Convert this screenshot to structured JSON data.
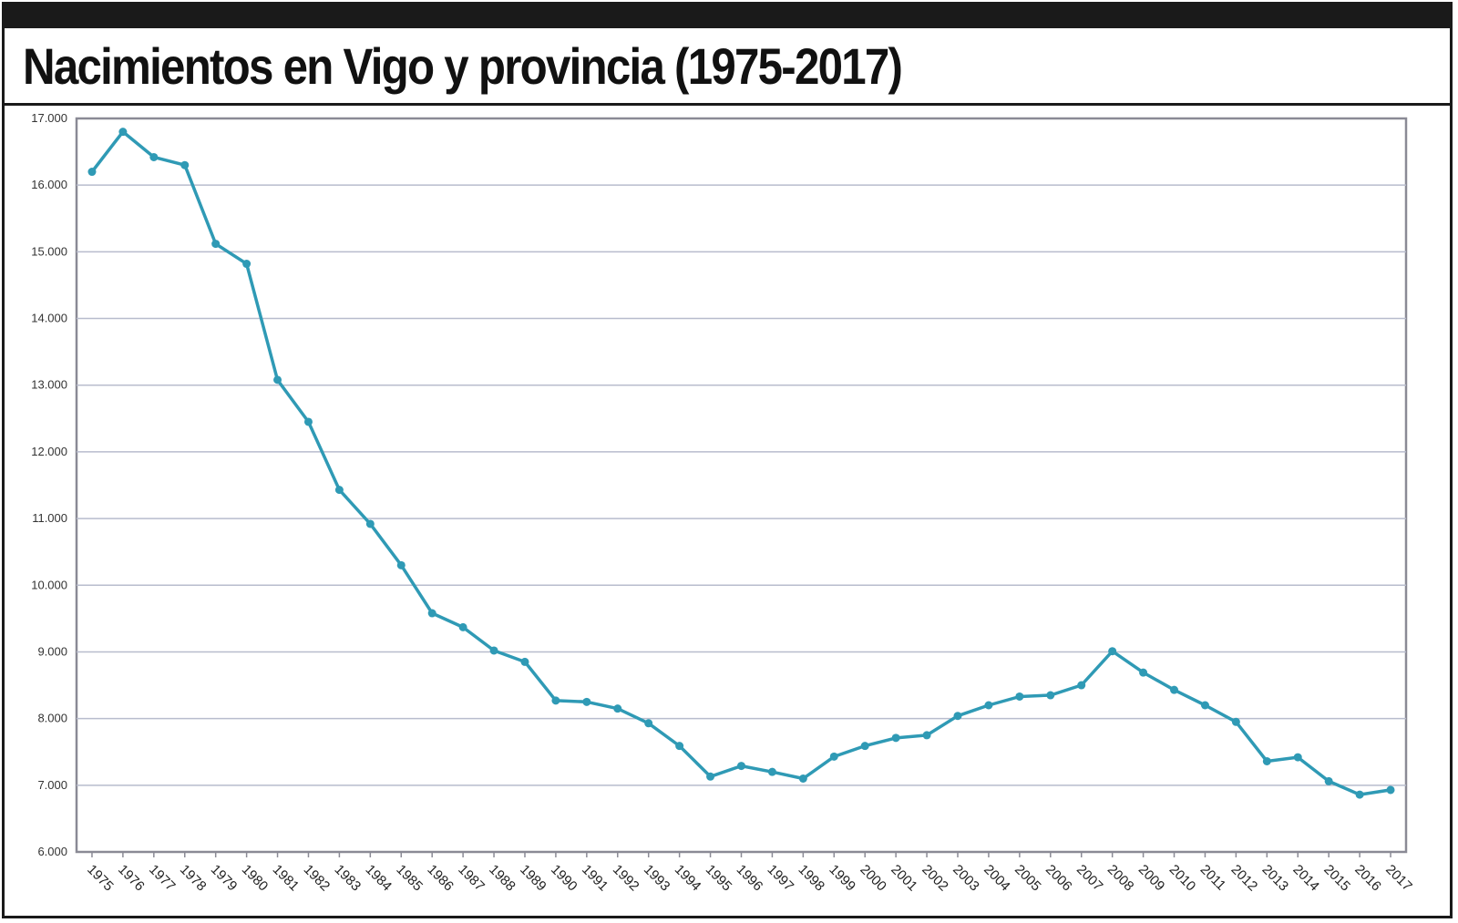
{
  "chart_data": {
    "type": "line",
    "title": "Nacimientos en Vigo y provincia (1975-2017)",
    "xlabel": "",
    "ylabel": "",
    "ylim": [
      6000,
      17000
    ],
    "y_ticks": [
      "6.000",
      "7.000",
      "8.000",
      "9.000",
      "10.000",
      "11.000",
      "12.000",
      "13.000",
      "14.000",
      "15.000",
      "16.000",
      "17.000"
    ],
    "y_tick_values": [
      6000,
      7000,
      8000,
      9000,
      10000,
      11000,
      12000,
      13000,
      14000,
      15000,
      16000,
      17000
    ],
    "x": [
      "1975",
      "1976",
      "1977",
      "1978",
      "1979",
      "1980",
      "1981",
      "1982",
      "1983",
      "1984",
      "1985",
      "1986",
      "1987",
      "1988",
      "1989",
      "1990",
      "1991",
      "1992",
      "1993",
      "1994",
      "1995",
      "1996",
      "1997",
      "1998",
      "1999",
      "2000",
      "2001",
      "2002",
      "2003",
      "2004",
      "2005",
      "2006",
      "2007",
      "2008",
      "2009",
      "2010",
      "2011",
      "2012",
      "2013",
      "2014",
      "2015",
      "2016",
      "2017"
    ],
    "series": [
      {
        "values": [
          16200,
          16800,
          16420,
          16300,
          15120,
          14820,
          13080,
          12450,
          11430,
          10920,
          10300,
          9580,
          9370,
          9020,
          8850,
          8270,
          8250,
          8150,
          7930,
          7590,
          7130,
          7290,
          7200,
          7100,
          7430,
          7590,
          7710,
          7750,
          8040,
          8200,
          8330,
          8350,
          8500,
          9010,
          8690,
          8430,
          8200,
          7950,
          7360,
          7420,
          7060,
          6860,
          6930
        ]
      }
    ],
    "grid": true,
    "legend": "none",
    "line_color": "#2f9ab5",
    "grid_color": "#b8bccd"
  }
}
